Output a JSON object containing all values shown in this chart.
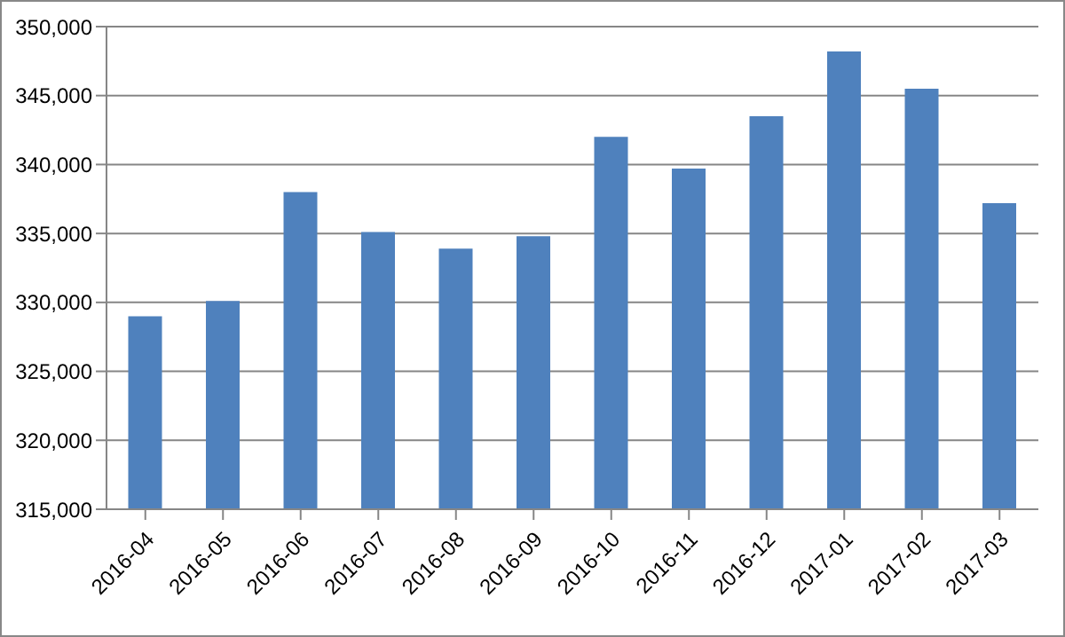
{
  "chart_data": {
    "type": "bar",
    "categories": [
      "2016-04",
      "2016-05",
      "2016-06",
      "2016-07",
      "2016-08",
      "2016-09",
      "2016-10",
      "2016-11",
      "2016-12",
      "2017-01",
      "2017-02",
      "2017-03"
    ],
    "values": [
      329000,
      330100,
      338000,
      335100,
      333900,
      334800,
      342000,
      339700,
      343500,
      348200,
      345500,
      337200
    ],
    "color": "#4f81bd",
    "ylim": [
      315000,
      350000
    ],
    "yticks": [
      {
        "value": 315000,
        "label": "315,000"
      },
      {
        "value": 320000,
        "label": "320,000"
      },
      {
        "value": 325000,
        "label": "325,000"
      },
      {
        "value": 330000,
        "label": "330,000"
      },
      {
        "value": 335000,
        "label": "335,000"
      },
      {
        "value": 340000,
        "label": "340,000"
      },
      {
        "value": 345000,
        "label": "345,000"
      },
      {
        "value": 350000,
        "label": "350,000"
      }
    ],
    "grid": "y"
  }
}
